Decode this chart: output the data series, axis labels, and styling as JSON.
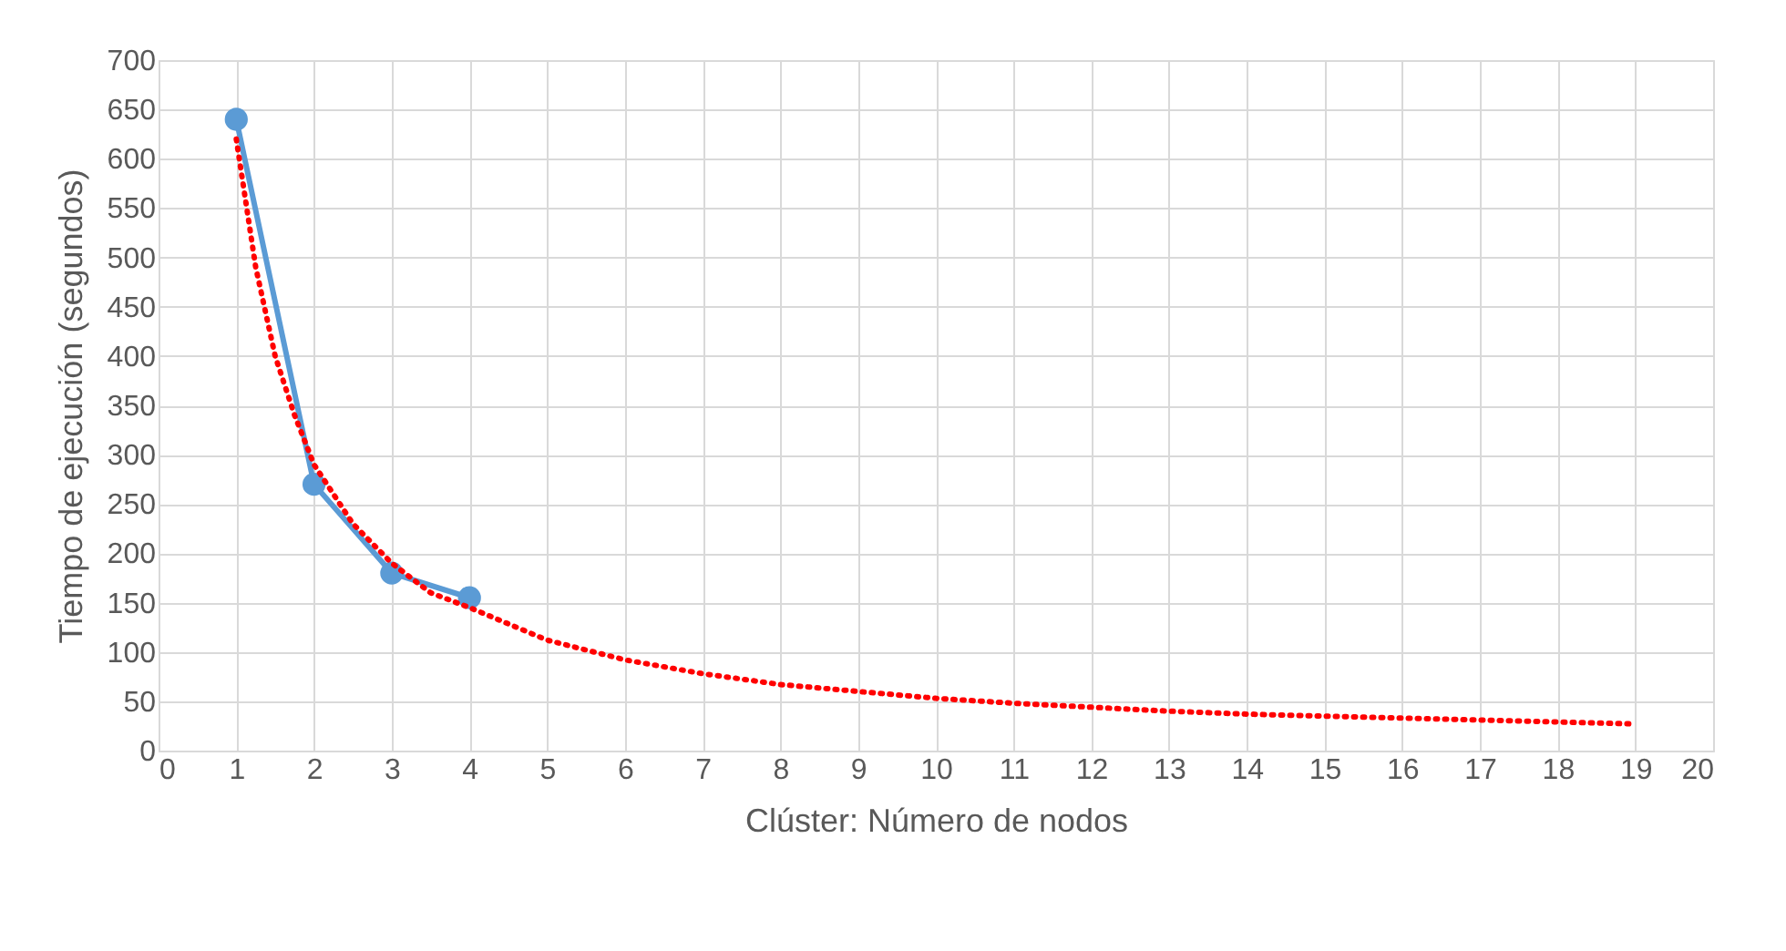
{
  "chart_data": {
    "type": "line",
    "xlabel": "Clúster: Número de nodos",
    "ylabel": "Tiempo de ejecución (segundos)",
    "series": [
      {
        "color": "#5b9bd5",
        "marker": "circle",
        "line_style": "solid",
        "x": [
          1,
          2,
          3,
          4
        ],
        "values": [
          640,
          270,
          180,
          155
        ]
      },
      {
        "color": "#ff0000",
        "marker": "none",
        "line_style": "dotted",
        "x": [
          1,
          1.25,
          1.5,
          1.75,
          2,
          2.5,
          3,
          3.5,
          4,
          5,
          6,
          7,
          8,
          9,
          10,
          11,
          12,
          13,
          14,
          15,
          16,
          17,
          18,
          19
        ],
        "values": [
          620,
          490,
          400,
          340,
          290,
          230,
          190,
          160,
          145,
          112,
          92,
          78,
          67,
          60,
          53,
          48,
          44,
          40,
          37,
          35,
          33,
          31,
          29,
          27
        ]
      }
    ],
    "xlim": [
      0,
      20
    ],
    "xticks": [
      0,
      1,
      2,
      3,
      4,
      5,
      6,
      7,
      8,
      9,
      10,
      11,
      12,
      13,
      14,
      15,
      16,
      17,
      18,
      19,
      20
    ],
    "ylim": [
      0,
      700
    ],
    "yticks": [
      0,
      50,
      100,
      150,
      200,
      250,
      300,
      350,
      400,
      450,
      500,
      550,
      600,
      650,
      700
    ],
    "grid": true
  }
}
